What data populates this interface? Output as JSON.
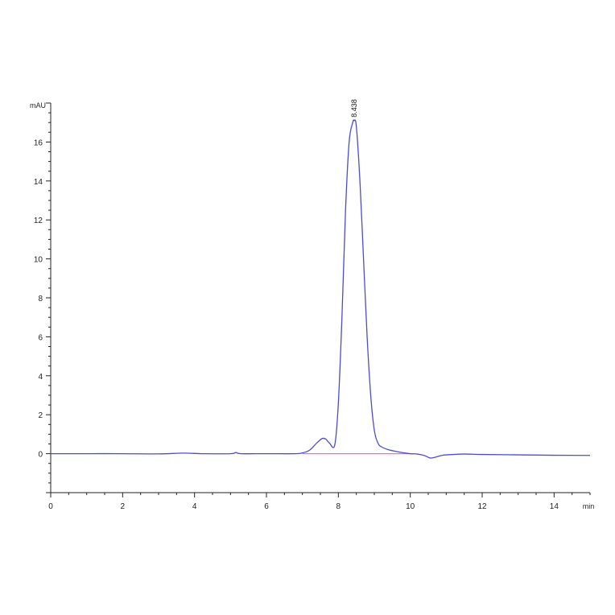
{
  "chart_data": {
    "type": "line",
    "title": "",
    "xlabel": "min",
    "ylabel": "mAU",
    "xlim": [
      0,
      15
    ],
    "ylim": [
      -2,
      18
    ],
    "x_ticks": [
      0,
      2,
      4,
      6,
      8,
      10,
      12,
      14
    ],
    "y_ticks": [
      0,
      2,
      4,
      6,
      8,
      10,
      12,
      14,
      16
    ],
    "grid": false,
    "colors": {
      "signal": "#4b4bd8",
      "baseline": "#ff66cc",
      "axis": "#222222"
    },
    "peak_annotation": {
      "label": "8.438",
      "x": 8.438,
      "y": 17.1
    },
    "baseline": {
      "x": [
        7.0,
        10.1
      ],
      "y": [
        0,
        0
      ]
    },
    "series": [
      {
        "x": [
          0.0,
          1.0,
          2.0,
          3.0,
          3.7,
          4.2,
          5.0,
          5.15,
          5.3,
          6.0,
          6.8,
          7.0,
          7.2,
          7.4,
          7.55,
          7.65,
          7.75,
          7.9,
          8.0,
          8.1,
          8.2,
          8.3,
          8.4,
          8.438,
          8.5,
          8.6,
          8.7,
          8.8,
          8.9,
          9.0,
          9.1,
          9.2,
          9.4,
          9.6,
          9.8,
          10.0,
          10.2,
          10.4,
          10.55,
          10.7,
          10.9,
          11.1,
          11.5,
          12.0,
          13.0,
          14.0,
          15.0
        ],
        "y": [
          0.0,
          0.0,
          0.0,
          -0.01,
          0.03,
          0.0,
          0.0,
          0.06,
          0.0,
          0.0,
          0.0,
          0.04,
          0.18,
          0.55,
          0.78,
          0.75,
          0.55,
          0.45,
          2.6,
          7.0,
          12.5,
          16.0,
          17.0,
          17.1,
          16.8,
          14.0,
          10.0,
          6.0,
          3.0,
          1.2,
          0.55,
          0.35,
          0.2,
          0.12,
          0.05,
          0.0,
          -0.02,
          -0.1,
          -0.22,
          -0.18,
          -0.08,
          -0.05,
          -0.02,
          -0.04,
          -0.06,
          -0.08,
          -0.09
        ]
      }
    ]
  }
}
